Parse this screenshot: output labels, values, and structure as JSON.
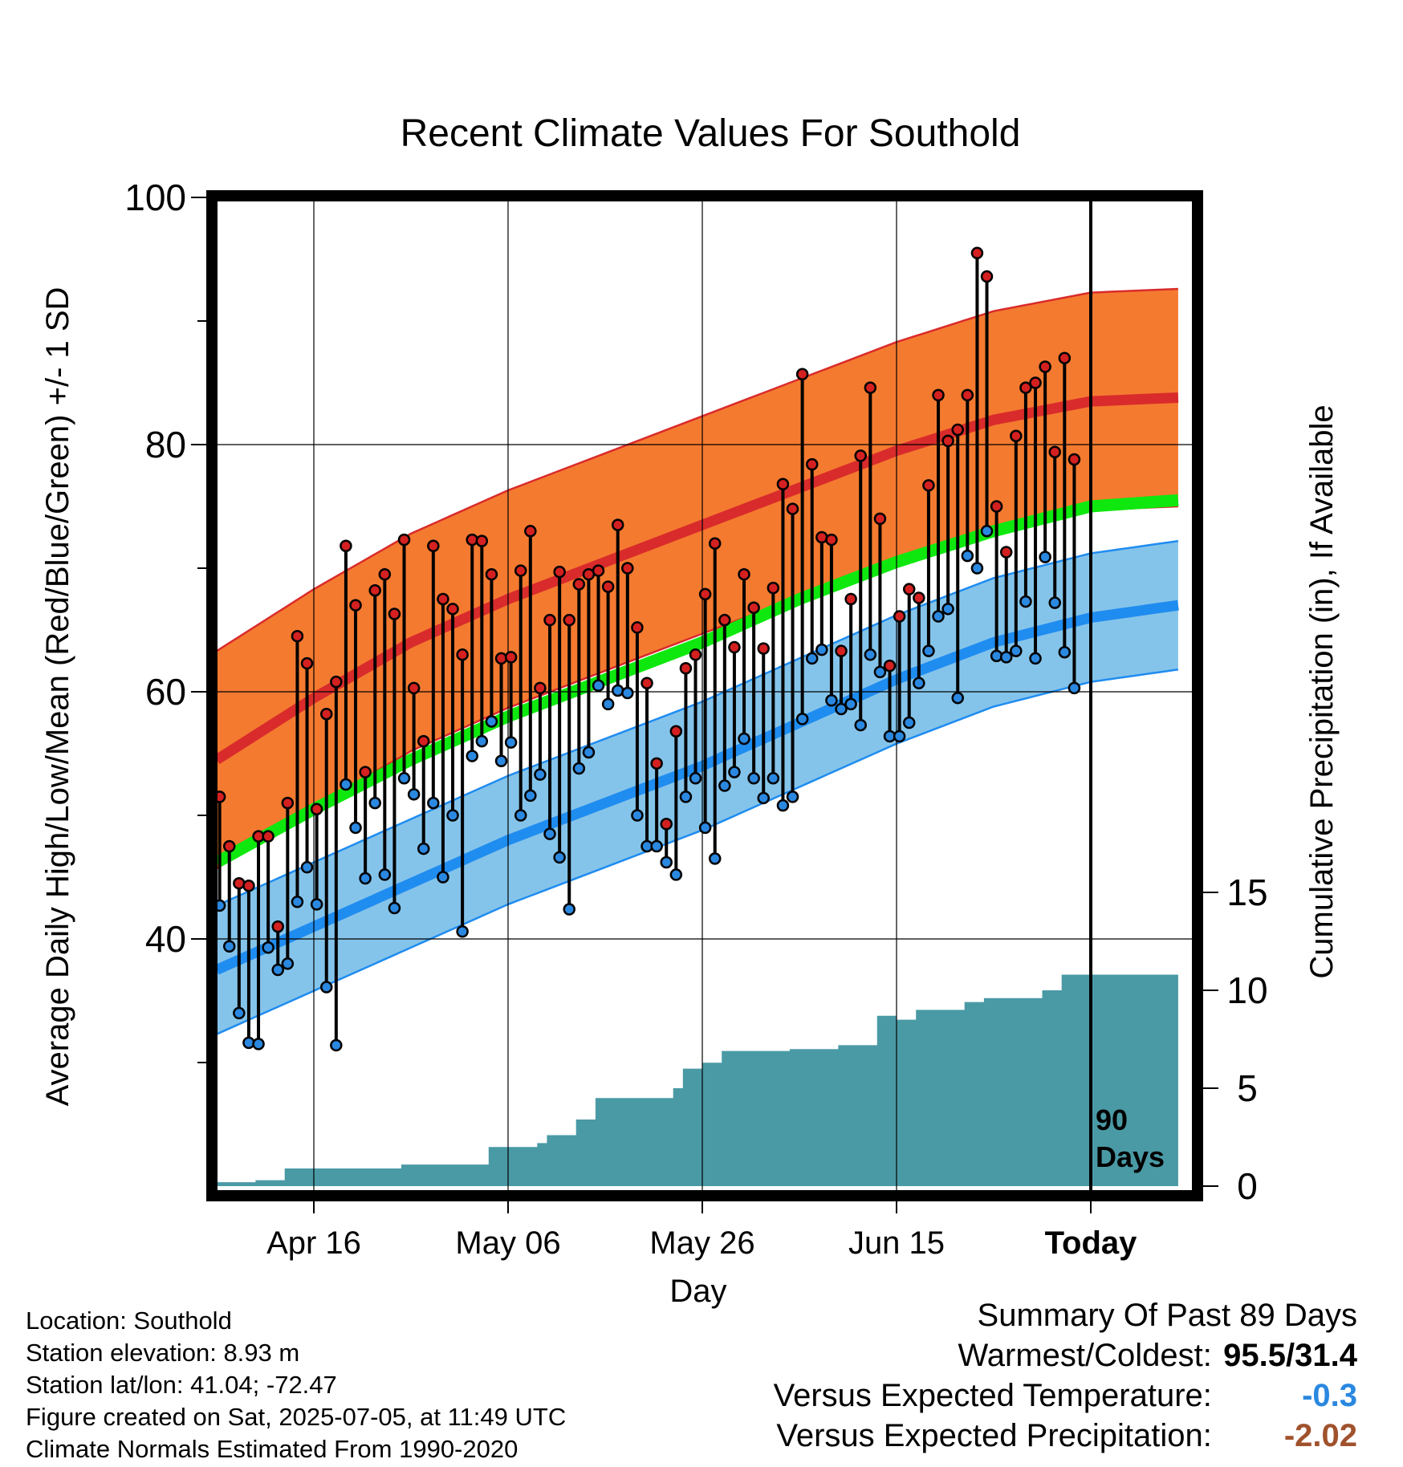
{
  "chart_data": {
    "type": "line",
    "title": "Recent Climate Values For Southold",
    "xlabel": "Day",
    "ylabel": "Average Daily High/Low/Mean (Red/Blue/Green) +/- 1 SD",
    "y2label": "Cumulative Precipitation (in), If Available",
    "ylim": [
      20,
      100
    ],
    "y_ticks": [
      40,
      60,
      80,
      100
    ],
    "y2lim": [
      0,
      50
    ],
    "y2_ticks": [
      0,
      5,
      10,
      15
    ],
    "x_ticks": [
      "Apr 16",
      "May 06",
      "May 26",
      "Jun 15",
      "Today"
    ],
    "today_label": "90 Days",
    "grid": true,
    "colors": {
      "high_band": "#f47a30",
      "high_mean": "#d92b2b",
      "low_band": "#85c4ea",
      "low_mean": "#1f8cf0",
      "mean": "#0ee80e",
      "precip": "#4a9aa5",
      "high_marker": "#d42020",
      "low_marker": "#2a88e0"
    },
    "normal_high": {
      "day": [
        0,
        10,
        20,
        30,
        40,
        50,
        60,
        70,
        80,
        90,
        99
      ],
      "mean": [
        54.5,
        59.5,
        64.0,
        67.5,
        70.5,
        73.5,
        76.5,
        79.5,
        82.0,
        83.5,
        83.8
      ],
      "sd": 8.8
    },
    "normal_low": {
      "day": [
        0,
        10,
        20,
        30,
        40,
        50,
        60,
        70,
        80,
        90,
        99
      ],
      "mean": [
        37.5,
        41.0,
        44.5,
        48.0,
        51.0,
        54.0,
        57.5,
        61.0,
        64.0,
        66.0,
        67.0
      ],
      "sd": 5.2
    },
    "normal_mean": {
      "day": [
        0,
        10,
        20,
        30,
        40,
        50,
        60,
        70,
        80,
        90,
        99
      ],
      "values": [
        46.2,
        50.5,
        54.5,
        58.0,
        61.0,
        64.0,
        67.5,
        70.5,
        73.0,
        75.0,
        75.5
      ]
    },
    "series": [
      {
        "name": "High",
        "values": [
          51.5,
          47.5,
          44.5,
          44.3,
          48.3,
          48.3,
          41.0,
          51.0,
          64.5,
          62.3,
          50.5,
          58.2,
          60.8,
          71.8,
          67.0,
          53.5,
          68.2,
          69.5,
          66.3,
          72.3,
          60.3,
          56.0,
          71.8,
          67.5,
          66.7,
          63.0,
          72.3,
          72.2,
          69.5,
          62.7,
          62.8,
          69.8,
          73.0,
          60.3,
          65.8,
          69.7,
          65.8,
          68.7,
          69.5,
          69.8,
          68.5,
          73.5,
          70.0,
          65.2,
          60.7,
          54.2,
          49.3,
          56.8,
          61.9,
          63.0,
          67.9,
          72.0,
          65.8,
          63.6,
          69.5,
          66.8,
          63.5,
          68.4,
          76.8,
          74.8,
          85.7,
          78.4,
          72.5,
          72.3,
          63.3,
          67.5,
          79.1,
          84.6,
          74.0,
          62.1,
          66.1,
          68.3,
          67.6,
          76.7,
          84.0,
          80.3,
          81.2,
          84.0,
          95.5,
          93.6,
          75.0,
          71.3,
          80.7,
          84.6,
          85.0,
          86.3,
          79.4,
          87.0,
          78.8
        ]
      },
      {
        "name": "Low",
        "values": [
          42.7,
          39.4,
          34.0,
          31.6,
          31.5,
          39.3,
          37.5,
          38.0,
          43.0,
          45.8,
          42.8,
          36.1,
          31.4,
          52.5,
          49.0,
          44.9,
          51.0,
          45.2,
          42.5,
          53.0,
          51.7,
          47.3,
          51.0,
          45.0,
          50.0,
          40.6,
          54.8,
          56.0,
          57.6,
          54.4,
          55.9,
          50.0,
          51.6,
          53.3,
          48.5,
          46.6,
          42.4,
          53.8,
          55.1,
          60.5,
          59.0,
          60.1,
          59.9,
          50.0,
          47.5,
          47.5,
          46.2,
          45.2,
          51.5,
          53.0,
          49.0,
          46.5,
          52.4,
          53.5,
          56.2,
          53.0,
          51.4,
          53.0,
          50.8,
          51.5,
          57.8,
          62.7,
          63.4,
          59.3,
          58.6,
          59.0,
          57.3,
          63.0,
          61.6,
          56.4,
          56.4,
          57.5,
          60.7,
          63.3,
          66.1,
          66.7,
          59.5,
          71.0,
          70.0,
          73.0,
          62.9,
          62.8,
          63.3,
          67.3,
          62.7,
          70.9,
          67.2,
          63.2,
          60.3
        ]
      },
      {
        "name": "Cumulative Precipitation",
        "x": [
          0,
          4,
          7,
          16,
          19,
          27,
          28,
          30,
          31,
          33,
          34,
          37,
          39,
          47,
          48,
          50,
          52,
          55,
          59,
          64,
          68,
          70,
          72,
          77,
          79,
          85,
          87,
          99
        ],
        "values": [
          0.2,
          0.3,
          0.9,
          0.9,
          1.1,
          1.1,
          2.0,
          2.0,
          2.0,
          2.2,
          2.6,
          3.4,
          4.5,
          5.0,
          6.0,
          6.3,
          6.9,
          6.9,
          7.0,
          7.2,
          8.7,
          8.5,
          9.0,
          9.4,
          9.6,
          10.0,
          10.8,
          11.0
        ]
      }
    ]
  },
  "location": {
    "location_line": "Location: Southold",
    "elevation_line": "Station elevation: 8.93 m",
    "latlon_line": "Station lat/lon: 41.04; -72.47",
    "created_line": "Figure created on Sat, 2025-07-05, at 11:49 UTC",
    "normals_line": "Climate Normals Estimated From 1990-2020"
  },
  "summary": {
    "heading": "Summary Of Past 89 Days",
    "warm_cold_label": "Warmest/Coldest:",
    "warm_cold_value": "95.5/31.4",
    "temp_label": "Versus Expected Temperature:",
    "temp_value": "-0.3",
    "temp_color": "#2a88e0",
    "precip_label": "Versus Expected Precipitation:",
    "precip_value": "-2.02",
    "precip_color": "#a0522d"
  }
}
